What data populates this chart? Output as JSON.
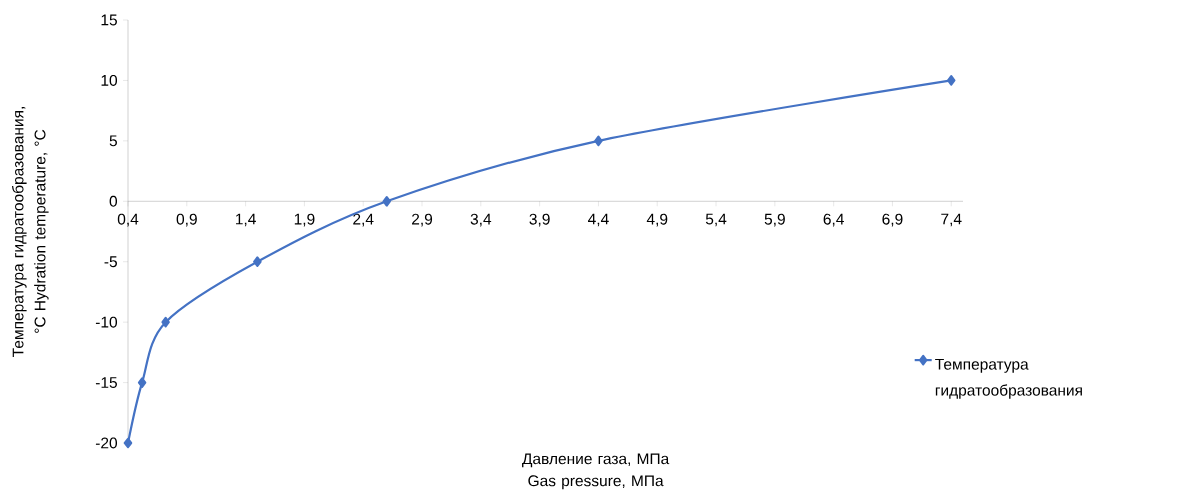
{
  "chart_data": {
    "type": "line",
    "xlabel": "Давление газа, МПа Gas pressure, МПа",
    "ylabel": "Температура гидратообразования, °С Hydration temperature, °С",
    "x": [
      0.4,
      0.52,
      0.72,
      1.5,
      2.6,
      4.4,
      7.4
    ],
    "series": [
      {
        "name": "Температура гидратообразования",
        "color": "#4472c4",
        "values": [
          -20,
          -15,
          -10,
          -5,
          0,
          5,
          10
        ]
      }
    ],
    "xlim": [
      0.4,
      7.5
    ],
    "xticks": [
      {
        "value": 0.4,
        "label": "0,4"
      },
      {
        "value": 0.9,
        "label": "0,9"
      },
      {
        "value": 1.4,
        "label": "1,4"
      },
      {
        "value": 1.9,
        "label": "1,9"
      },
      {
        "value": 2.4,
        "label": "2,4"
      },
      {
        "value": 2.9,
        "label": "2,9"
      },
      {
        "value": 3.4,
        "label": "3,4"
      },
      {
        "value": 3.9,
        "label": "3,9"
      },
      {
        "value": 4.4,
        "label": "4,4"
      },
      {
        "value": 4.9,
        "label": "4,9"
      },
      {
        "value": 5.4,
        "label": "5,4"
      },
      {
        "value": 5.9,
        "label": "5,9"
      },
      {
        "value": 6.4,
        "label": "6,4"
      },
      {
        "value": 6.9,
        "label": "6,9"
      },
      {
        "value": 7.4,
        "label": "7,4"
      }
    ],
    "ylim": [
      -20,
      15
    ],
    "yticks": [
      -20,
      -15,
      -10,
      -5,
      0,
      5,
      10,
      15
    ],
    "marker": "diamond",
    "line_style": "solid",
    "legend": "right",
    "grid": false
  }
}
